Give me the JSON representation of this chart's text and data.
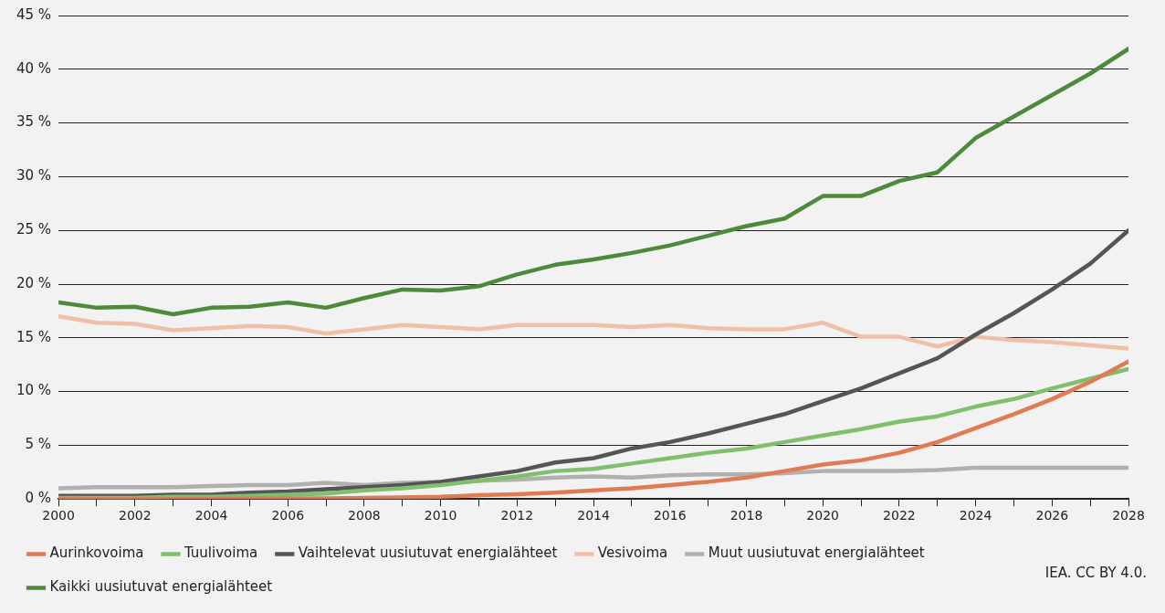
{
  "chart_data": {
    "type": "line",
    "x": [
      2000,
      2001,
      2002,
      2003,
      2004,
      2005,
      2006,
      2007,
      2008,
      2009,
      2010,
      2011,
      2012,
      2013,
      2014,
      2015,
      2016,
      2017,
      2018,
      2019,
      2020,
      2021,
      2022,
      2023,
      2024,
      2025,
      2026,
      2027,
      2028
    ],
    "series": [
      {
        "name": "Aurinkovoima",
        "color": "#e07b54",
        "values": [
          0,
          0,
          0,
          0,
          0,
          0.05,
          0.05,
          0.05,
          0.1,
          0.15,
          0.2,
          0.35,
          0.45,
          0.6,
          0.8,
          1.0,
          1.3,
          1.6,
          2.0,
          2.6,
          3.2,
          3.6,
          4.3,
          5.3,
          6.6,
          7.9,
          9.3,
          10.9,
          12.8
        ]
      },
      {
        "name": "Tuulivoima",
        "color": "#80bf6e",
        "values": [
          0.1,
          0.1,
          0.1,
          0.2,
          0.2,
          0.3,
          0.4,
          0.5,
          0.8,
          1.0,
          1.3,
          1.7,
          2.1,
          2.6,
          2.8,
          3.3,
          3.8,
          4.3,
          4.7,
          5.3,
          5.9,
          6.5,
          7.2,
          7.7,
          8.6,
          9.3,
          10.3,
          11.2,
          12.1
        ]
      },
      {
        "name": "Vaihtelevat uusiutuvat energialähteet",
        "color": "#555555",
        "values": [
          0.3,
          0.3,
          0.3,
          0.4,
          0.4,
          0.6,
          0.7,
          0.9,
          1.1,
          1.3,
          1.6,
          2.1,
          2.6,
          3.4,
          3.8,
          4.7,
          5.3,
          6.1,
          7.0,
          7.9,
          9.1,
          10.3,
          11.7,
          13.1,
          15.3,
          17.3,
          19.5,
          21.9,
          25.0
        ]
      },
      {
        "name": "Vesivoima",
        "color": "#f0bfa8",
        "values": [
          17.0,
          16.4,
          16.3,
          15.7,
          15.9,
          16.1,
          16.0,
          15.4,
          15.8,
          16.2,
          16.0,
          15.8,
          16.2,
          16.2,
          16.2,
          16.0,
          16.2,
          15.9,
          15.8,
          15.8,
          16.4,
          15.1,
          15.1,
          14.2,
          15.1,
          14.8,
          14.6,
          14.3,
          14.0
        ]
      },
      {
        "name": "Muut uusiutuvat energialähteet",
        "color": "#b0b0b0",
        "values": [
          1.0,
          1.1,
          1.1,
          1.1,
          1.2,
          1.3,
          1.3,
          1.5,
          1.3,
          1.5,
          1.6,
          1.7,
          1.8,
          2.0,
          2.1,
          2.0,
          2.2,
          2.3,
          2.3,
          2.4,
          2.6,
          2.6,
          2.6,
          2.7,
          2.9,
          2.9,
          2.9,
          2.9,
          2.9
        ]
      },
      {
        "name": "Kaikki uusiutuvat energialähteet",
        "color": "#4e8a3c",
        "values": [
          18.3,
          17.8,
          17.9,
          17.2,
          17.8,
          17.9,
          18.3,
          17.8,
          18.7,
          19.5,
          19.4,
          19.8,
          20.9,
          21.8,
          22.3,
          22.9,
          23.6,
          24.5,
          25.4,
          26.1,
          28.2,
          28.2,
          29.6,
          30.4,
          33.6,
          35.6,
          37.6,
          39.6,
          41.9
        ]
      }
    ],
    "xlim": [
      2000,
      2028
    ],
    "xticks": [
      2000,
      {
        "value": 2001,
        "label": null
      },
      2002,
      {
        "value": 2003,
        "label": null
      },
      2004,
      {
        "value": 2005,
        "label": null
      },
      2006,
      {
        "value": 2007,
        "label": null
      },
      2008,
      {
        "value": 2009,
        "label": null
      },
      2010,
      {
        "value": 2011,
        "label": null
      },
      2012,
      {
        "value": 2013,
        "label": null
      },
      2014,
      {
        "value": 2015,
        "label": null
      },
      2016,
      {
        "value": 2017,
        "label": null
      },
      2018,
      {
        "value": 2019,
        "label": null
      },
      2020,
      {
        "value": 2021,
        "label": null
      },
      2022,
      {
        "value": 2023,
        "label": null
      },
      2024,
      {
        "value": 2025,
        "label": null
      },
      2026,
      {
        "value": 2027,
        "label": null
      },
      2028
    ],
    "ylim": [
      0,
      45
    ],
    "yticks": [
      {
        "value": 0,
        "label": "0 %"
      },
      {
        "value": 5,
        "label": "5 %"
      },
      {
        "value": 10,
        "label": "10 %"
      },
      {
        "value": 15,
        "label": "15 %"
      },
      {
        "value": 20,
        "label": "20 %"
      },
      {
        "value": 25,
        "label": "25 %"
      },
      {
        "value": 30,
        "label": "30 %"
      },
      {
        "value": 35,
        "label": "35 %"
      },
      {
        "value": 40,
        "label": "40 %"
      },
      {
        "value": 45,
        "label": "45 %"
      }
    ],
    "grid": "y",
    "legend": "bottom",
    "marker": "none",
    "line_style": "solid",
    "annotations": [
      "IEA. CC BY 4.0."
    ]
  }
}
